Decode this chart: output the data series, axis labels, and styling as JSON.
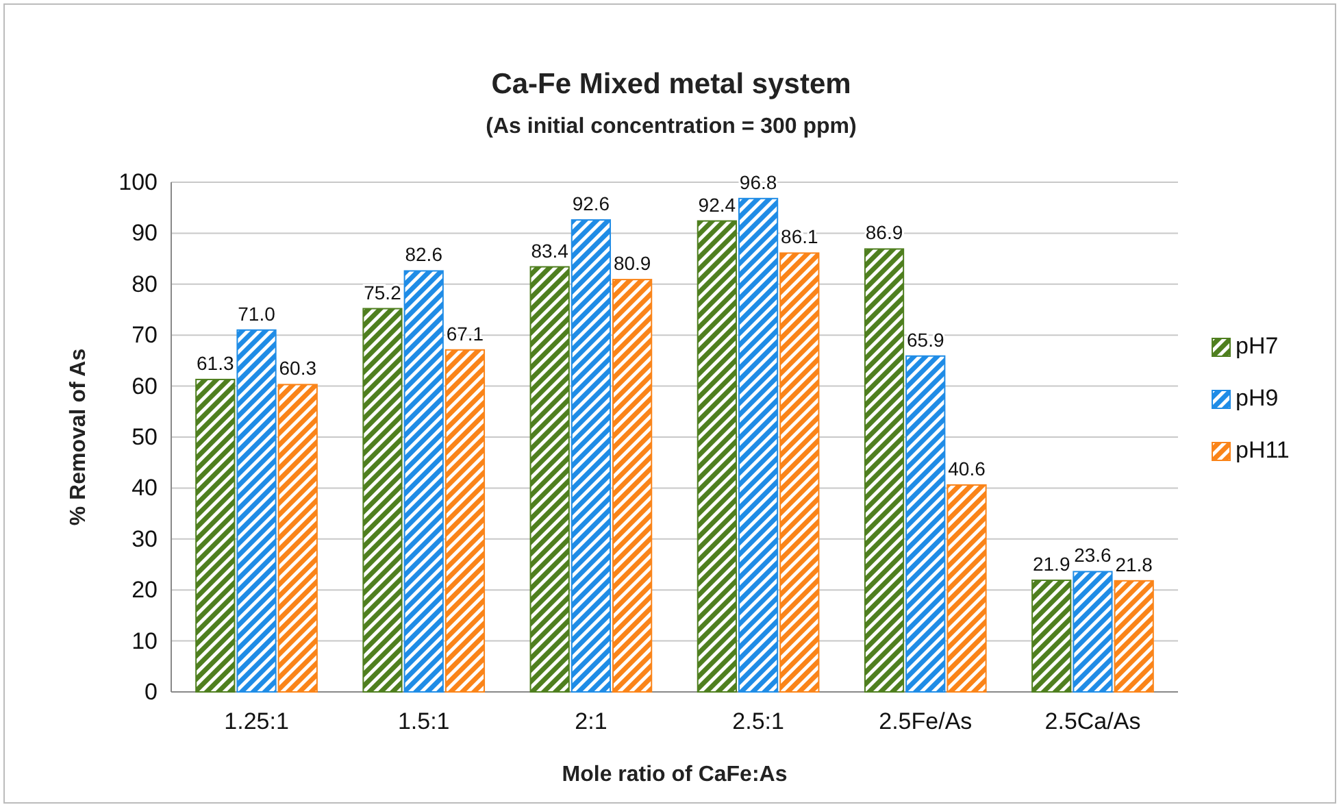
{
  "chart_data": {
    "type": "bar",
    "title": "Ca-Fe Mixed metal system",
    "subtitle": "(As initial concentration = 300 ppm)",
    "xlabel": "Mole ratio of CaFe:As",
    "ylabel": "% Removal of As",
    "categories": [
      "1.25:1",
      "1.5:1",
      "2:1",
      "2.5:1",
      "2.5Fe/As",
      "2.5Ca/As"
    ],
    "series": [
      {
        "name": "pH7",
        "color": "#4f7f1f",
        "values": [
          61.3,
          75.2,
          83.4,
          92.4,
          86.9,
          21.9
        ],
        "value_labels": [
          "61.3",
          "75.2",
          "83.4",
          "92.4",
          "86.9",
          "21.9"
        ]
      },
      {
        "name": "pH9",
        "color": "#1f8ce6",
        "values": [
          71.0,
          82.6,
          92.6,
          96.8,
          65.9,
          23.6
        ],
        "value_labels": [
          "71.0",
          "82.6",
          "92.6",
          "96.8",
          "65.9",
          "23.6"
        ]
      },
      {
        "name": "pH11",
        "color": "#fa8419",
        "values": [
          60.3,
          67.1,
          80.9,
          86.1,
          40.6,
          21.8
        ],
        "value_labels": [
          "60.3",
          "67.1",
          "80.9",
          "86.1",
          "40.6",
          "21.8"
        ]
      }
    ],
    "ylim": [
      0,
      100
    ],
    "yticks": [
      0,
      10,
      20,
      30,
      40,
      50,
      60,
      70,
      80,
      90,
      100
    ],
    "grid": "y",
    "legend": "right"
  }
}
